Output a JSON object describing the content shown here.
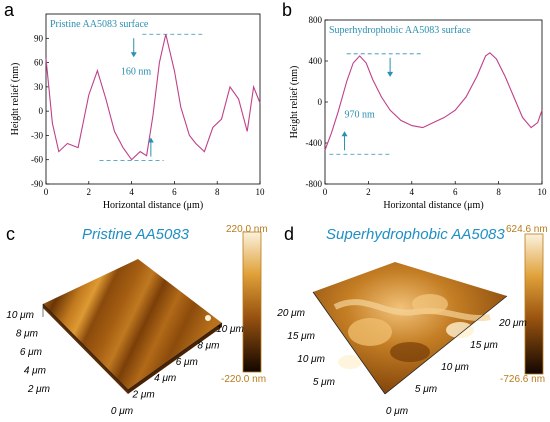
{
  "panels": {
    "a": {
      "letter": "a"
    },
    "b": {
      "letter": "b"
    },
    "c": {
      "letter": "c",
      "title": "Pristine AA5083",
      "scale_max": "220.0 nm",
      "scale_min": "-220.0 nm",
      "x_ticks": [
        "0 μm",
        "2 μm",
        "4 μm",
        "6 μm",
        "8 μm",
        "10 μm"
      ],
      "y_ticks": [
        "2 μm",
        "4 μm",
        "6 μm",
        "8 μm",
        "10 μm"
      ]
    },
    "d": {
      "letter": "d",
      "title": "Superhydrophobic AA5083",
      "scale_max": "624.6 nm",
      "scale_min": "-726.6 nm",
      "x_ticks": [
        "0 μm",
        "5 μm",
        "10 μm",
        "15 μm",
        "20 μm"
      ],
      "y_ticks": [
        "5 μm",
        "10 μm",
        "15 μm",
        "20 μm"
      ]
    }
  },
  "colors": {
    "profile": "#c0408a",
    "annotation": "#2a8fb0",
    "afm_dark": "#3a1800",
    "afm_light": "#f6e6c8",
    "title_blue": "#1f8fc4"
  },
  "chart_data": [
    {
      "type": "line",
      "title": "Pristine AA5083 surface",
      "xlabel": "Horizontal distance (μm)",
      "ylabel": "Height relief (nm)",
      "xlim": [
        0,
        10
      ],
      "ylim": [
        -90,
        120
      ],
      "xticks": [
        0,
        2,
        4,
        6,
        8,
        10
      ],
      "yticks": [
        -90,
        -60,
        -30,
        0,
        30,
        60,
        90
      ],
      "annotation": "160 nm",
      "series": [
        {
          "values": [
            [
              0,
              65
            ],
            [
              0.3,
              -15
            ],
            [
              0.6,
              -50
            ],
            [
              1.0,
              -40
            ],
            [
              1.5,
              -45
            ],
            [
              2.0,
              20
            ],
            [
              2.4,
              50
            ],
            [
              2.8,
              15
            ],
            [
              3.2,
              -25
            ],
            [
              3.6,
              -45
            ],
            [
              4.0,
              -60
            ],
            [
              4.4,
              -50
            ],
            [
              4.7,
              -55
            ],
            [
              5.0,
              -5
            ],
            [
              5.3,
              60
            ],
            [
              5.6,
              95
            ],
            [
              6.0,
              50
            ],
            [
              6.3,
              5
            ],
            [
              6.7,
              -30
            ],
            [
              7.0,
              -40
            ],
            [
              7.4,
              -50
            ],
            [
              7.8,
              -20
            ],
            [
              8.2,
              -10
            ],
            [
              8.6,
              30
            ],
            [
              9.0,
              15
            ],
            [
              9.4,
              -25
            ],
            [
              9.7,
              30
            ],
            [
              10,
              10
            ]
          ]
        }
      ]
    },
    {
      "type": "line",
      "title": "Superhydrophobic AA5083 surface",
      "xlabel": "Horizontal distance (μm)",
      "ylabel": "Height relief (nm)",
      "xlim": [
        0,
        10
      ],
      "ylim": [
        -800,
        800
      ],
      "xticks": [
        0,
        2,
        4,
        6,
        8,
        10
      ],
      "yticks": [
        -800,
        -400,
        0,
        400,
        800
      ],
      "annotation": "970 nm",
      "series": [
        {
          "values": [
            [
              0,
              -470
            ],
            [
              0.3,
              -300
            ],
            [
              0.6,
              -100
            ],
            [
              1.0,
              200
            ],
            [
              1.3,
              380
            ],
            [
              1.6,
              450
            ],
            [
              1.9,
              380
            ],
            [
              2.2,
              220
            ],
            [
              2.6,
              50
            ],
            [
              3.0,
              -80
            ],
            [
              3.5,
              -180
            ],
            [
              4.0,
              -230
            ],
            [
              4.5,
              -250
            ],
            [
              5.0,
              -200
            ],
            [
              5.5,
              -150
            ],
            [
              6.0,
              -80
            ],
            [
              6.5,
              50
            ],
            [
              7.0,
              250
            ],
            [
              7.4,
              450
            ],
            [
              7.6,
              480
            ],
            [
              7.9,
              420
            ],
            [
              8.3,
              250
            ],
            [
              8.7,
              50
            ],
            [
              9.1,
              -150
            ],
            [
              9.5,
              -250
            ],
            [
              9.8,
              -200
            ],
            [
              10,
              -80
            ]
          ]
        }
      ]
    }
  ]
}
